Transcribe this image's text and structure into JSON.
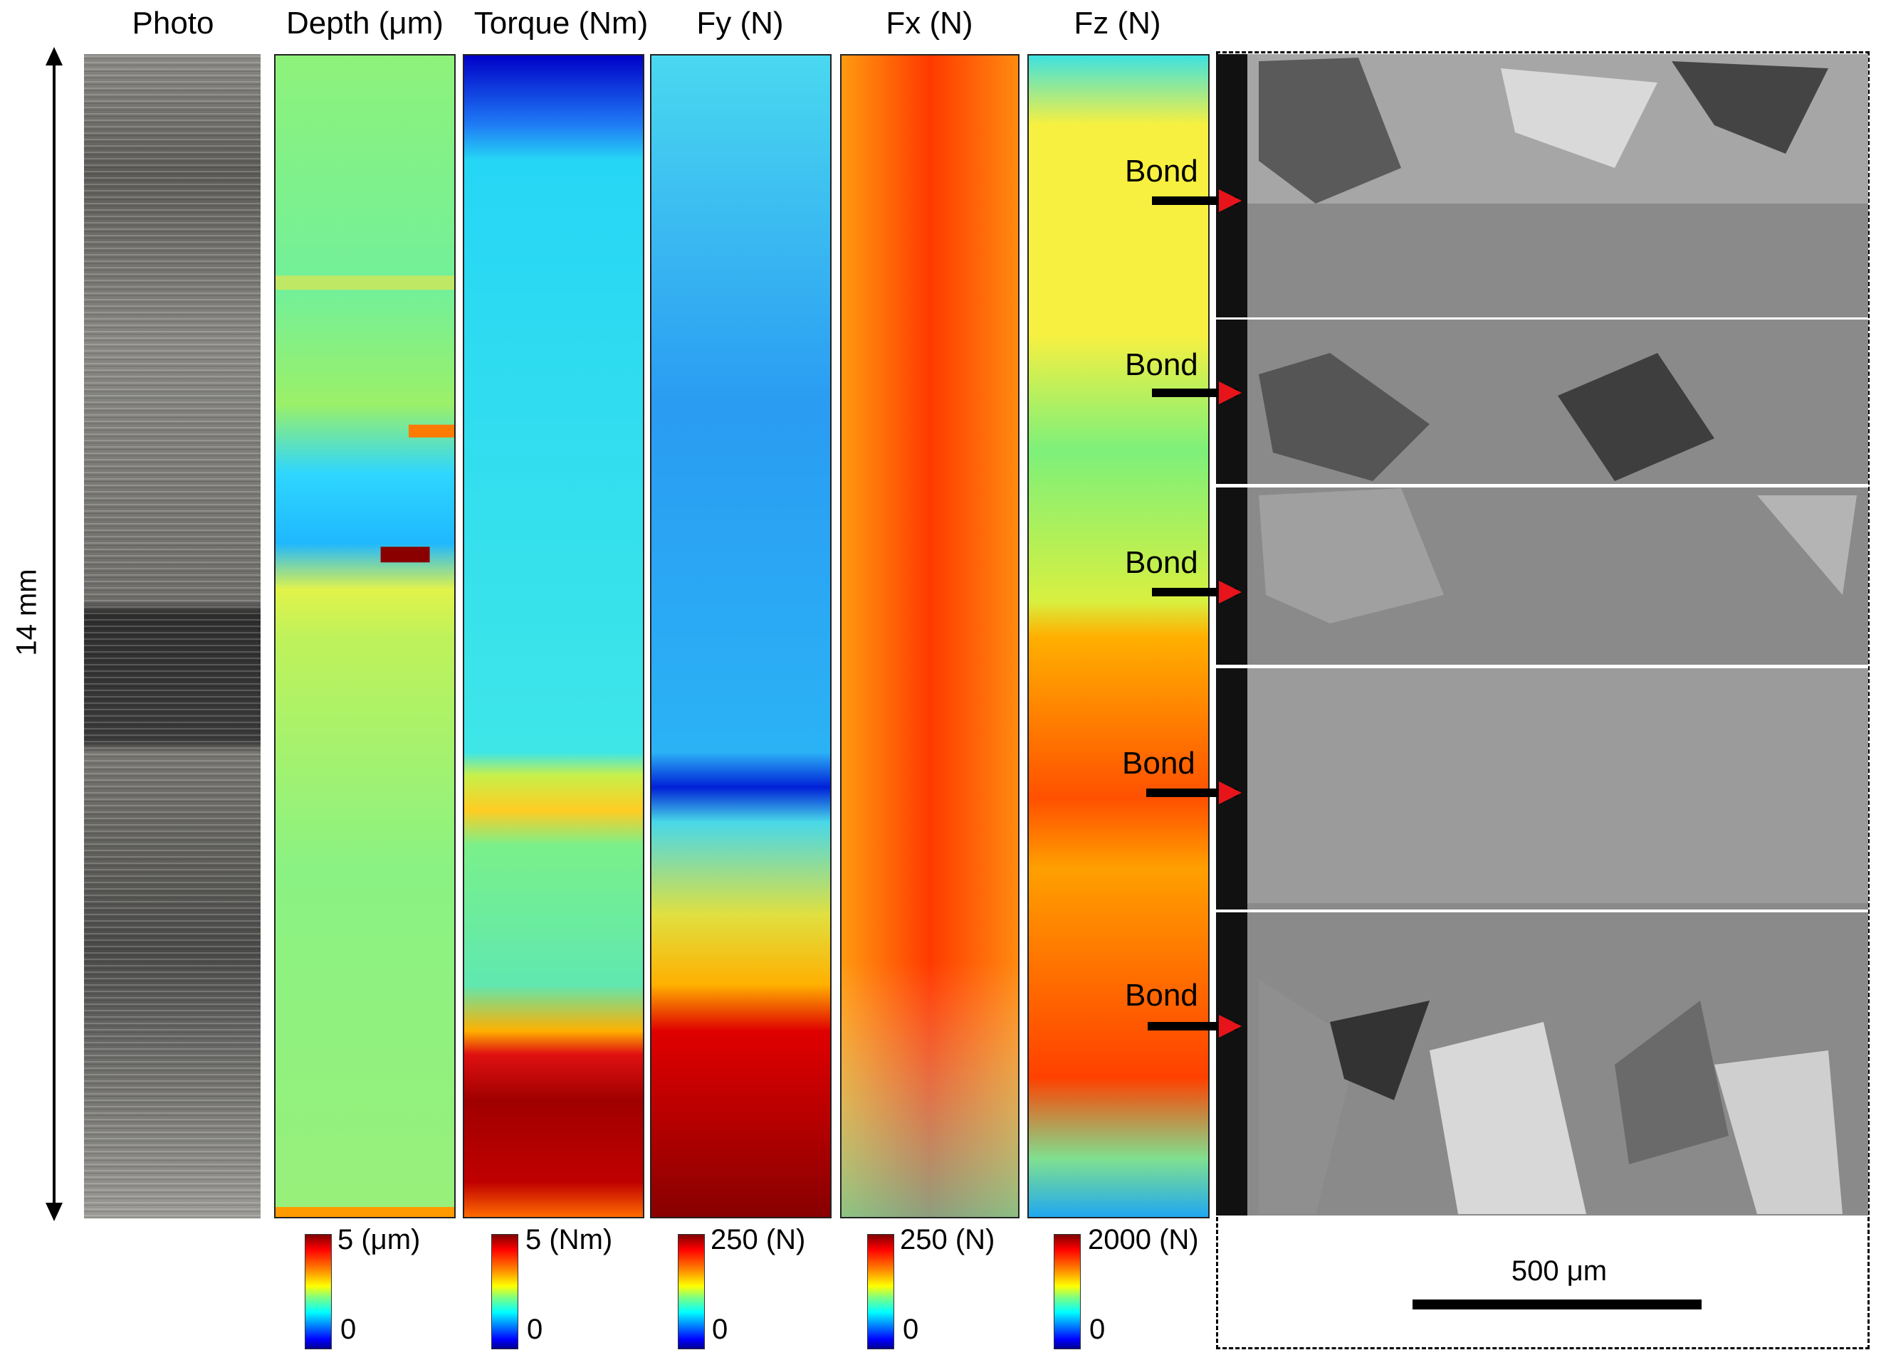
{
  "columns": {
    "photo": "Photo",
    "depth": "Depth (μm)",
    "torque": "Torque (Nm)",
    "fy": "Fy (N)",
    "fx": "Fx (N)",
    "fz": "Fz (N)"
  },
  "axis": {
    "length_label": "14 mm"
  },
  "colorbars": [
    {
      "max": "5 (μm)",
      "min": "0"
    },
    {
      "max": "5 (Nm)",
      "min": "0"
    },
    {
      "max": "250 (N)",
      "min": "0"
    },
    {
      "max": "250 (N)",
      "min": "0"
    },
    {
      "max": "2000 (N)",
      "min": "0"
    }
  ],
  "micrograph": {
    "bond_label": "Bond",
    "scale_bar": "500 μm"
  },
  "colors": {
    "bond_arrowhead": "#e8141b",
    "colormap": "jet"
  }
}
